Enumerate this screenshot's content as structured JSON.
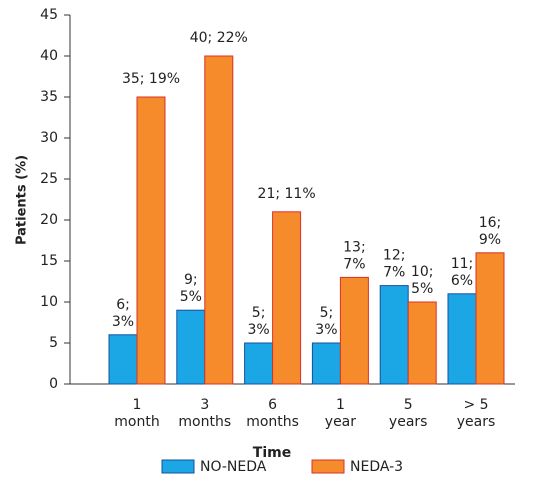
{
  "chart_data": {
    "type": "bar",
    "x_label": "Time",
    "y_label": "Patients (%)",
    "categories": [
      "1 month",
      "3 months",
      "6 months",
      "1 year",
      "5 years",
      "> 5 years"
    ],
    "series": [
      {
        "name": "NO-NEDA",
        "color": "#1ba7e6",
        "values": [
          6,
          9,
          5,
          5,
          12,
          11
        ],
        "value_labels": [
          "6; 3%",
          "9; 5%",
          "5; 3%",
          "5; 3%",
          "12; 7%",
          "11; 6%"
        ]
      },
      {
        "name": "NEDA-3",
        "color": "#f68b2c",
        "values": [
          35,
          40,
          21,
          13,
          10,
          16
        ],
        "value_labels": [
          "35; 19%",
          "40; 22%",
          "21; 11%",
          "13; 7%",
          "10; 5%",
          "16; 9%"
        ]
      }
    ],
    "ylim": [
      0,
      45
    ],
    "yticks": [
      0,
      5,
      10,
      15,
      20,
      25,
      30,
      35,
      40,
      45
    ],
    "grid": false
  }
}
